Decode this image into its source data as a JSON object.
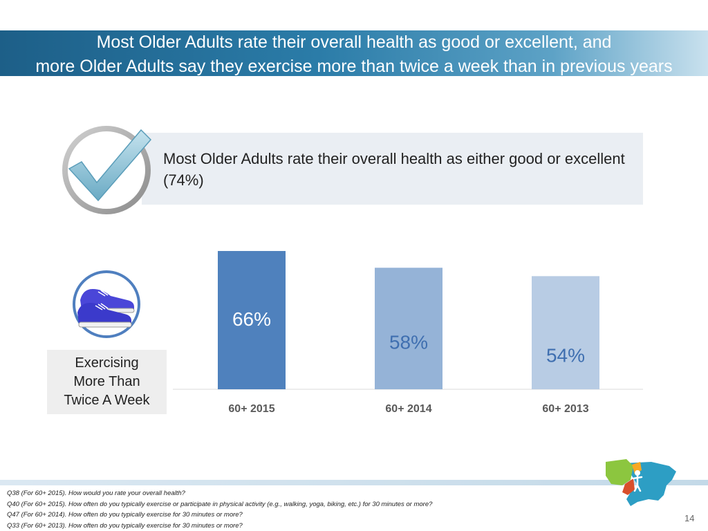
{
  "slide": {
    "title_line1": "Most Older Adults rate their overall health as good or excellent, and",
    "title_line2": "more Older Adults say they exercise more than twice a week than in previous years",
    "callout_text": "Most Older Adults rate their overall health as either good or excellent (74%)",
    "exercise_label_lines": [
      "Exercising",
      "More Than",
      "Twice A Week"
    ],
    "page_number": "14"
  },
  "footnotes": [
    "Q38 (For 60+ 2015). How would you rate your overall health?",
    "Q40 (For 60+ 2015). How often do you typically exercise or participate in physical activity (e.g., walking, yoga, biking, etc.) for 30 minutes or more?",
    "Q47 (For 60+ 2014). How often do you typically exercise for 30 minutes or more?",
    "Q33 (For 60+ 2013). How often do you typically exercise for 30 minutes or more?"
  ],
  "icons": {
    "checkmark": "checkmark-icon",
    "sneakers": "sneakers-icon",
    "logo": "us-map-logo"
  },
  "colors": {
    "title_band": "#2b7ca8",
    "bar_2015": "#4f81bd",
    "bar_2014": "#95b3d7",
    "bar_2013": "#b8cce4"
  },
  "chart_data": {
    "type": "bar",
    "title": "",
    "xlabel": "",
    "ylabel": "",
    "categories": [
      "60+ 2015",
      "60+ 2014",
      "60+ 2013"
    ],
    "values": [
      66,
      58,
      54
    ],
    "data_labels": [
      "66%",
      "58%",
      "54%"
    ],
    "ylim": [
      0,
      100
    ],
    "grid": false,
    "legend": "none"
  }
}
